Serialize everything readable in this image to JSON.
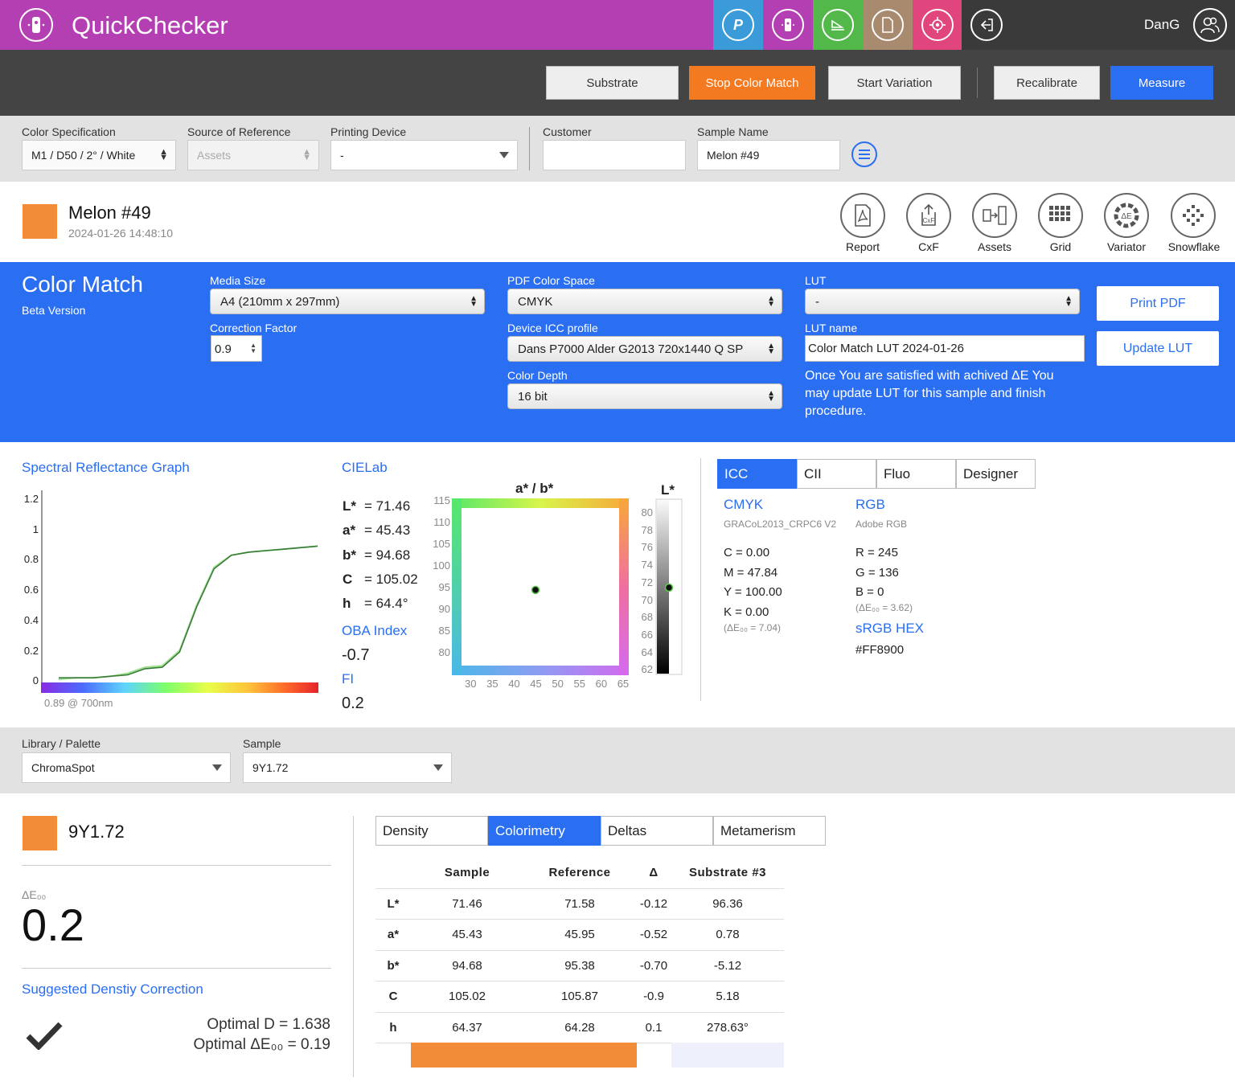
{
  "app": {
    "title": "QuickChecker",
    "user": "DanG"
  },
  "nav_icons": [
    {
      "name": "pantone-icon",
      "color": "#3a9bd8",
      "glyph": "P"
    },
    {
      "name": "device-icon",
      "color": "#b33fb3",
      "glyph": "⋯"
    },
    {
      "name": "scanner-icon",
      "color": "#52b84a",
      "glyph": "▭"
    },
    {
      "name": "document-icon",
      "color": "#a88a6e",
      "glyph": "▢"
    },
    {
      "name": "target-icon",
      "color": "#e0457e",
      "glyph": "◎"
    },
    {
      "name": "logout-icon",
      "color": "#3a3a3a",
      "glyph": "⇦"
    }
  ],
  "toolbar": {
    "substrate": "Substrate",
    "stop_color_match": "Stop Color Match",
    "start_variation": "Start Variation",
    "recalibrate": "Recalibrate",
    "measure": "Measure"
  },
  "spec": {
    "color_spec_label": "Color Specification",
    "color_spec_value": "M1 / D50 / 2° / White",
    "source_label": "Source of Reference",
    "source_value": "Assets",
    "printing_label": "Printing Device",
    "printing_value": "-",
    "customer_label": "Customer",
    "customer_value": "",
    "sample_name_label": "Sample Name",
    "sample_name_value": "Melon #49"
  },
  "sample": {
    "name": "Melon #49",
    "timestamp": "2024-01-26 14:48:10",
    "color": "#f28c38"
  },
  "tools": [
    {
      "label": "Report",
      "icon": "report-icon",
      "glyph": "⎌"
    },
    {
      "label": "CxF",
      "icon": "cxf-icon",
      "glyph": "⇪"
    },
    {
      "label": "Assets",
      "icon": "assets-icon",
      "glyph": "⇉"
    },
    {
      "label": "Grid",
      "icon": "grid-icon",
      "glyph": "▦"
    },
    {
      "label": "Variator",
      "icon": "variator-icon",
      "glyph": "ΔE"
    },
    {
      "label": "Snowflake",
      "icon": "snowflake-icon",
      "glyph": "✥"
    }
  ],
  "color_match": {
    "title": "Color Match",
    "subtitle": "Beta Version",
    "media_size_label": "Media Size",
    "media_size": "A4 (210mm x 297mm)",
    "correction_label": "Correction Factor",
    "correction_value": "0.9",
    "pdf_cs_label": "PDF Color Space",
    "pdf_cs": "CMYK",
    "icc_label": "Device ICC profile",
    "icc": "Dans P7000 Alder G2013 720x1440 Q SP",
    "depth_label": "Color Depth",
    "depth": "16 bit",
    "lut_label": "LUT",
    "lut": "-",
    "lut_name_label": "LUT name",
    "lut_name": "Color Match LUT 2024-01-26",
    "note": "Once You are satisfied with achived ΔE You may update LUT for this sample and finish procedure.",
    "print_pdf": "Print PDF",
    "update_lut": "Update LUT"
  },
  "spectral": {
    "title": "Spectral Reflectance Graph",
    "y_ticks": [
      "1.2",
      "1",
      "0.8",
      "0.6",
      "0.4",
      "0.2",
      "0"
    ],
    "footnote": "0.89 @ 700nm"
  },
  "chart_data": {
    "type": "line",
    "title": "Spectral Reflectance Graph",
    "xlabel": "",
    "ylabel": "",
    "ylim": [
      0,
      1.2
    ],
    "series": [
      {
        "values": [
          0.01,
          0.02,
          0.02,
          0.03,
          0.05,
          0.09,
          0.1,
          0.2,
          0.5,
          0.75,
          0.83,
          0.85,
          0.86,
          0.87,
          0.88,
          0.89
        ]
      },
      {
        "values": [
          0.02,
          0.02,
          0.02,
          0.03,
          0.04,
          0.08,
          0.09,
          0.19,
          0.49,
          0.74,
          0.83,
          0.85,
          0.86,
          0.87,
          0.88,
          0.89
        ]
      }
    ]
  },
  "cielab": {
    "title": "CIELab",
    "L": "L*",
    "L_val": "= 71.46",
    "a": "a*",
    "a_val": "= 45.43",
    "b": "b*",
    "b_val": "= 94.68",
    "C": "C",
    "C_val": "= 105.02",
    "h": "h",
    "h_val": "= 64.4°",
    "oba_label": "OBA Index",
    "oba_value": "-0.7",
    "fi_label": "FI",
    "fi_value": "0.2",
    "ab_title": "a* / b*",
    "l_title": "L*",
    "ab_y_ticks": [
      "115",
      "110",
      "105",
      "100",
      "95",
      "90",
      "85",
      "80"
    ],
    "ab_x_ticks": [
      "30",
      "35",
      "40",
      "45",
      "50",
      "55",
      "60",
      "65"
    ],
    "l_ticks": [
      "80",
      "78",
      "76",
      "74",
      "72",
      "70",
      "68",
      "66",
      "64",
      "62"
    ],
    "point_a": 45.43,
    "point_b": 94.68,
    "point_L": 71.46
  },
  "conv_tabs": [
    "ICC",
    "CII",
    "Fluo",
    "Designer"
  ],
  "icc": {
    "cmyk_title": "CMYK",
    "cmyk_profile": "GRACoL2013_CRPC6 V2",
    "c": "C = 0.00",
    "m": "M = 47.84",
    "y": "Y = 100.00",
    "k": "K = 0.00",
    "cmyk_de": "(ΔE₀₀ = 7.04)",
    "rgb_title": "RGB",
    "rgb_profile": "Adobe RGB",
    "r": "R = 245",
    "g": "G = 136",
    "b": "B = 0",
    "rgb_de": "(ΔE₀₀ = 3.62)",
    "hex_title": "sRGB HEX",
    "hex": "#FF8900"
  },
  "library": {
    "lib_label": "Library / Palette",
    "lib_value": "ChromaSpot",
    "sample_label": "Sample",
    "sample_value": "9Y1.72"
  },
  "ref": {
    "name": "9Y1.72",
    "de_label": "ΔE₀₀",
    "de_value": "0.2",
    "suggest_title": "Suggested Denstiy Correction",
    "optimal_d": "Optimal D = 1.638",
    "optimal_de": "Optimal ΔE₀₀ = 0.19"
  },
  "data_tabs": [
    "Density",
    "Colorimetry",
    "Deltas",
    "Metamerism"
  ],
  "table": {
    "headers": [
      "",
      "Sample",
      "Reference",
      "Δ",
      "Substrate #3"
    ],
    "rows": [
      [
        "L*",
        "71.46",
        "71.58",
        "-0.12",
        "96.36"
      ],
      [
        "a*",
        "45.43",
        "45.95",
        "-0.52",
        "0.78"
      ],
      [
        "b*",
        "94.68",
        "95.38",
        "-0.70",
        "-5.12"
      ],
      [
        "C",
        "105.02",
        "105.87",
        "-0.9",
        "5.18"
      ],
      [
        "h",
        "64.37",
        "64.28",
        "0.1",
        "278.63°"
      ]
    ]
  },
  "colors": {
    "accent": "#2a6ef2",
    "orange": "#f28c38",
    "stop": "#f47a22",
    "topbar": "#b33fb3"
  }
}
